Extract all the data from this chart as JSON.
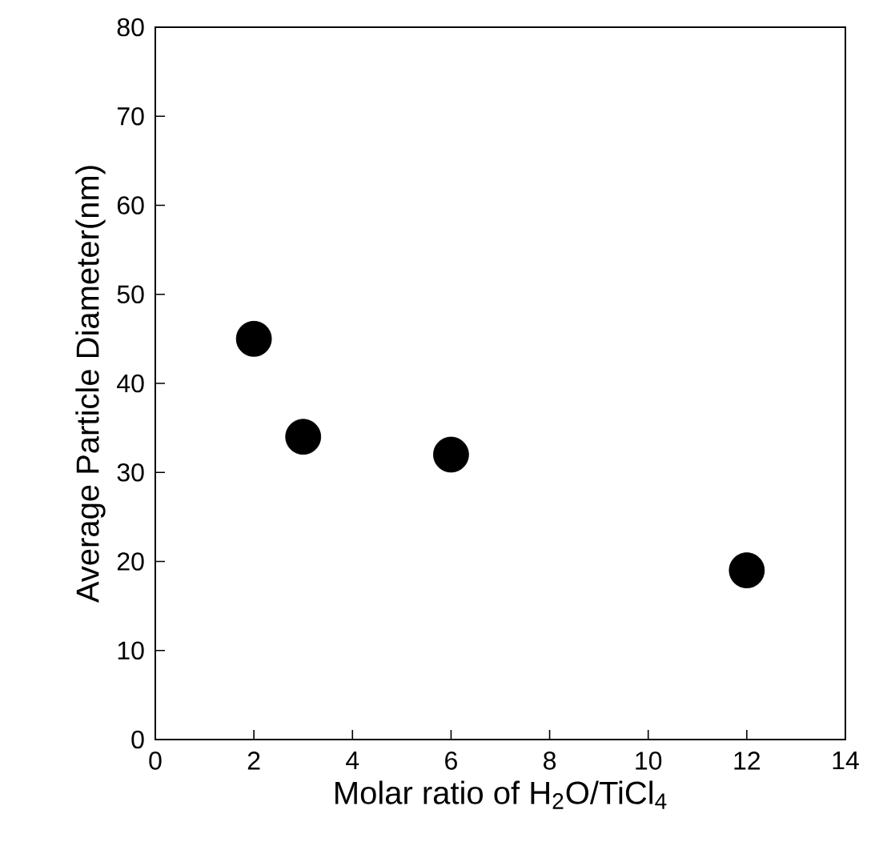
{
  "chart_data": {
    "type": "scatter",
    "xlabel": "Molar ratio of H$_{2}$O/TiCl$_{4}$",
    "ylabel": "Average Particle Diameter(nm)",
    "x": [
      2,
      3,
      6,
      12
    ],
    "values": [
      45,
      34,
      32,
      19
    ],
    "color": "#000000",
    "marker": "circle",
    "xlim": [
      0,
      14
    ],
    "xticks": [
      0,
      2,
      4,
      6,
      8,
      10,
      12,
      14
    ],
    "ylim": [
      0,
      80
    ],
    "yticks": [
      0,
      10,
      20,
      30,
      40,
      50,
      60,
      70,
      80
    ],
    "grid": false
  }
}
